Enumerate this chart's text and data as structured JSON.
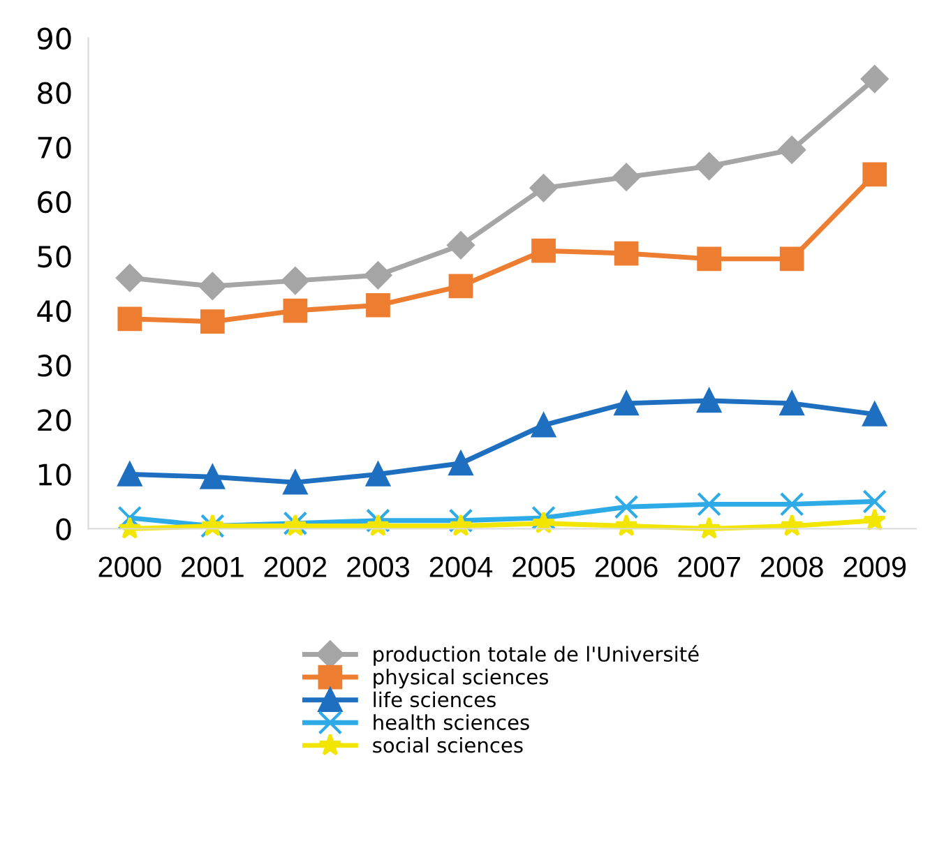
{
  "chart_data": {
    "type": "line",
    "categories": [
      "2000",
      "2001",
      "2002",
      "2003",
      "2004",
      "2005",
      "2006",
      "2007",
      "2008",
      "2009"
    ],
    "series": [
      {
        "name": "production totale de l'Université",
        "color": "#a5a5a5",
        "marker": "diamond",
        "values": [
          46,
          44.5,
          45.5,
          46.5,
          52,
          62.5,
          64.5,
          66.5,
          69.5,
          82.5
        ]
      },
      {
        "name": "physical sciences",
        "color": "#ed7d31",
        "marker": "square",
        "values": [
          38.5,
          38,
          40,
          41,
          44.5,
          51,
          50.5,
          49.5,
          49.5,
          65
        ]
      },
      {
        "name": "life sciences",
        "color": "#1f6fc0",
        "marker": "triangle",
        "values": [
          10,
          9.5,
          8.5,
          10,
          12,
          19,
          23,
          23.5,
          23,
          21
        ]
      },
      {
        "name": "health sciences",
        "color": "#2eaae6",
        "marker": "cross",
        "values": [
          2,
          0.5,
          1,
          1.5,
          1.5,
          2,
          4,
          4.5,
          4.5,
          5
        ]
      },
      {
        "name": "social sciences",
        "color": "#f2e600",
        "marker": "star",
        "values": [
          0,
          0.5,
          0.5,
          0.5,
          0.5,
          1,
          0.5,
          0,
          0.5,
          1.5
        ]
      }
    ],
    "ylim": [
      0,
      90
    ],
    "yticks": [
      0,
      10,
      20,
      30,
      40,
      50,
      60,
      70,
      80,
      90
    ],
    "legend": "bottom",
    "grid": false,
    "line_style": "solid"
  }
}
